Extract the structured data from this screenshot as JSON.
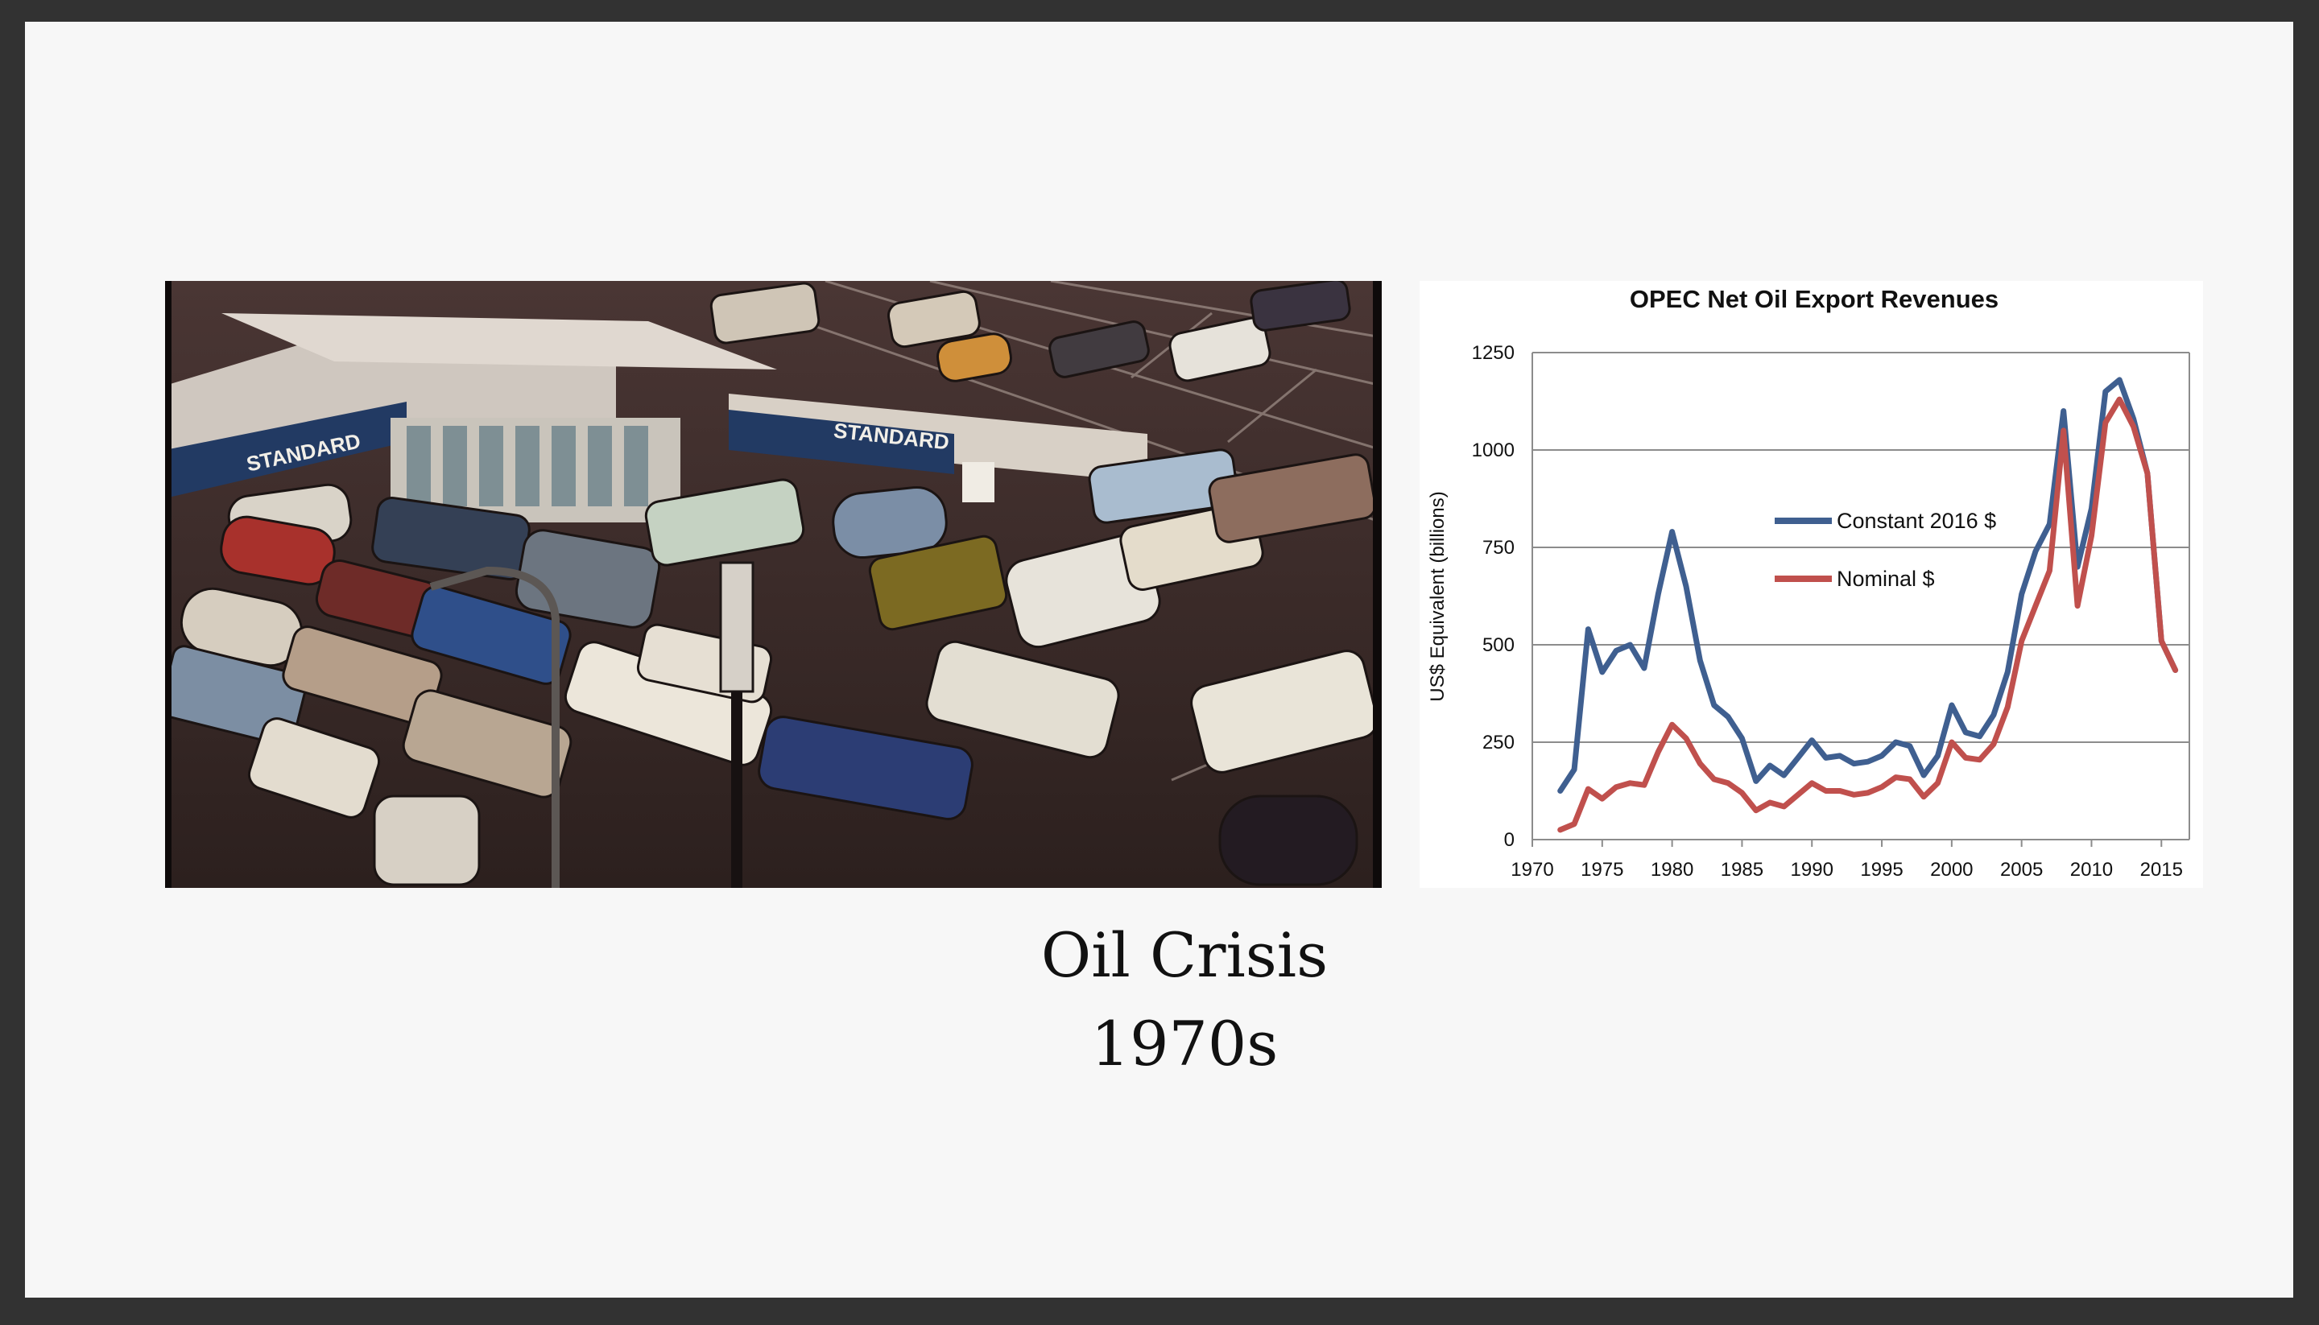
{
  "slide": {
    "caption_line1": "Oil Crisis",
    "caption_line2": "1970s"
  },
  "photo": {
    "subject": "Long queue of cars at a Standard gasoline station",
    "sign_labels": [
      "STANDARD",
      "STANDARD"
    ]
  },
  "colors": {
    "frame": "#323232",
    "slide_bg": "#f7f7f7",
    "series_constant": "#3f5f90",
    "series_nominal": "#c0504d",
    "gridline": "#8c8c8c"
  },
  "chart_data": {
    "type": "line",
    "title": "OPEC Net Oil Export Revenues",
    "xlabel": "",
    "ylabel": "US$ Equivalent (billions)",
    "xlim": [
      1970,
      2017
    ],
    "ylim": [
      0,
      1250
    ],
    "xticks": [
      1970,
      1975,
      1980,
      1985,
      1990,
      1995,
      2000,
      2005,
      2010,
      2015
    ],
    "yticks": [
      0,
      250,
      500,
      750,
      1000,
      1250
    ],
    "grid": "horizontal",
    "legend_position": "center-left",
    "x": [
      1972,
      1973,
      1974,
      1975,
      1976,
      1977,
      1978,
      1979,
      1980,
      1981,
      1982,
      1983,
      1984,
      1985,
      1986,
      1987,
      1988,
      1989,
      1990,
      1991,
      1992,
      1993,
      1994,
      1995,
      1996,
      1997,
      1998,
      1999,
      2000,
      2001,
      2002,
      2003,
      2004,
      2005,
      2006,
      2007,
      2008,
      2009,
      2010,
      2011,
      2012,
      2013,
      2014,
      2015,
      2016
    ],
    "series": [
      {
        "name": "Constant 2016 $",
        "color": "#3f5f90",
        "values": [
          125,
          180,
          540,
          430,
          485,
          500,
          440,
          630,
          790,
          650,
          460,
          345,
          315,
          260,
          150,
          190,
          165,
          210,
          255,
          210,
          215,
          195,
          200,
          215,
          250,
          240,
          165,
          215,
          345,
          275,
          265,
          320,
          430,
          630,
          740,
          810,
          1100,
          700,
          850,
          1150,
          1180,
          1080,
          940,
          510,
          435
        ]
      },
      {
        "name": "Nominal $",
        "color": "#c0504d",
        "values": [
          25,
          40,
          130,
          105,
          135,
          145,
          140,
          225,
          295,
          260,
          195,
          155,
          145,
          120,
          75,
          95,
          85,
          115,
          145,
          125,
          125,
          115,
          120,
          135,
          160,
          155,
          110,
          145,
          250,
          210,
          205,
          245,
          340,
          510,
          600,
          690,
          1050,
          600,
          780,
          1070,
          1130,
          1060,
          940,
          510,
          435
        ]
      }
    ]
  }
}
